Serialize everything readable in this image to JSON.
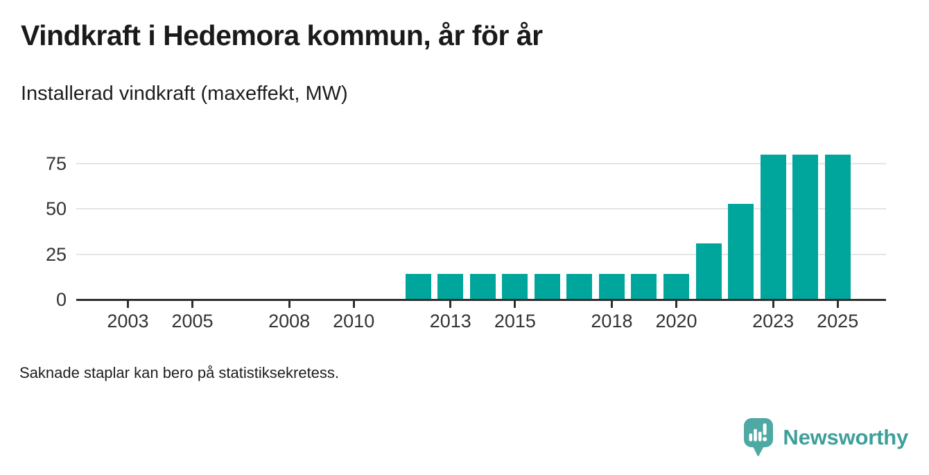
{
  "chart_data": {
    "type": "bar",
    "title": "Vindkraft i Hedemora kommun, år för år",
    "subtitle": "Installerad vindkraft (maxeffekt, MW)",
    "xlabel": "",
    "ylabel": "",
    "unit": "MW",
    "x": [
      2012,
      2013,
      2014,
      2015,
      2016,
      2017,
      2018,
      2019,
      2020,
      2021,
      2022,
      2023,
      2024,
      2025
    ],
    "values": [
      14,
      14,
      14,
      14,
      14,
      14,
      14,
      14,
      14,
      31,
      53,
      80,
      80,
      80
    ],
    "x_ticks": [
      2003,
      2005,
      2008,
      2010,
      2013,
      2015,
      2018,
      2020,
      2023,
      2025
    ],
    "y_ticks": [
      0,
      25,
      50,
      75
    ],
    "xlim": [
      2001.4,
      2026.5
    ],
    "ylim": [
      0,
      80
    ],
    "grid": "horizontal",
    "legend": "none",
    "bar_color": "#00a69c"
  },
  "footnote": "Saknade staplar kan bero på statistiksekretess.",
  "branding": {
    "logo_text": "Newsworthy",
    "logo_icon": "speech-bubble-bar-chart-exclamation",
    "bubble_color": "#4ea8a3",
    "text_color": "#3d9f9b"
  },
  "colors": {
    "background": "#ffffff",
    "title_text": "#1a1a1a",
    "axis_text": "#333333",
    "axis_line": "#2e2e2e",
    "gridline": "#e4e4e4"
  }
}
